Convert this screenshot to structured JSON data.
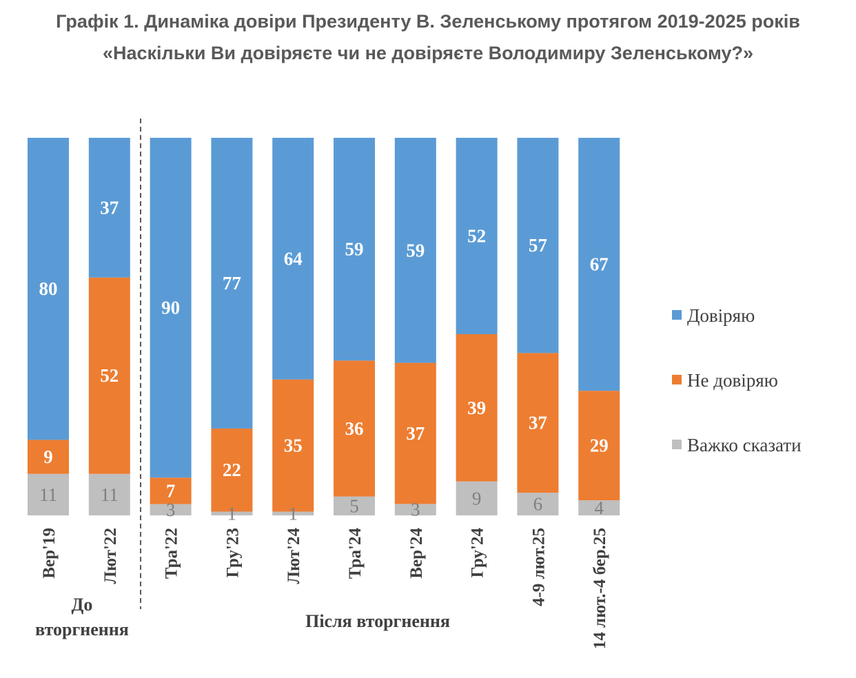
{
  "chart_data": {
    "type": "bar",
    "stacked": true,
    "title": "Графік 1. Динаміка довіри Президенту В. Зеленському протягом 2019-2025 років",
    "subtitle": "«Наскільки Ви довіряєте чи не довіряєте Володимиру Зеленському?»",
    "categories": [
      "Вер'19",
      "Лют'22",
      "Тра'22",
      "Гру'23",
      "Лют'24",
      "Тра'24",
      "Вер'24",
      "Гру'24",
      "4-9 лют.25",
      "14 лют.-4 бер.25"
    ],
    "series": [
      {
        "name": "Довіряю",
        "color": "#5b9bd5",
        "values": [
          80,
          37,
          90,
          77,
          64,
          59,
          59,
          52,
          57,
          67
        ]
      },
      {
        "name": "Не довіряю",
        "color": "#ed7d31",
        "values": [
          9,
          52,
          7,
          22,
          35,
          36,
          37,
          39,
          37,
          29
        ]
      },
      {
        "name": "Важко сказати",
        "color": "#bfbfbf",
        "values": [
          11,
          11,
          3,
          1,
          1,
          5,
          3,
          9,
          6,
          4
        ]
      }
    ],
    "ylim": [
      0,
      100
    ],
    "groups": [
      {
        "label": "До вторгнення",
        "line1": "До",
        "line2": "вторгнення",
        "categories": [
          0,
          1
        ]
      },
      {
        "label": "Після вторгнення",
        "categories": [
          2,
          3,
          4,
          5,
          6,
          7,
          8,
          9
        ]
      }
    ],
    "legend_position": "right"
  }
}
